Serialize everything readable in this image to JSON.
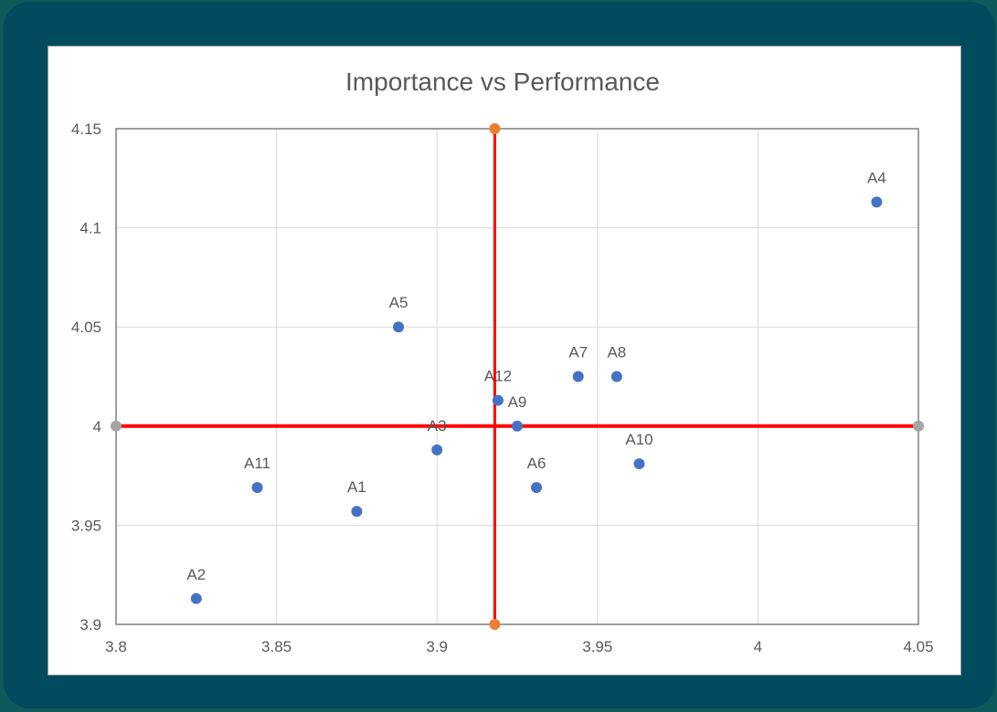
{
  "chart_data": {
    "type": "scatter",
    "title": "Importance vs Performance",
    "xlabel": "",
    "ylabel": "",
    "xlim": [
      3.8,
      4.05
    ],
    "ylim": [
      3.9,
      4.15
    ],
    "x_ticks": [
      "3.8",
      "3.85",
      "3.9",
      "3.95",
      "4",
      "4.05"
    ],
    "y_ticks": [
      "3.9",
      "3.95",
      "4",
      "4.05",
      "4.1",
      "4.15"
    ],
    "grid": true,
    "legend": "none",
    "points": [
      {
        "label": "A1",
        "x": 3.875,
        "y": 3.957
      },
      {
        "label": "A2",
        "x": 3.825,
        "y": 3.913
      },
      {
        "label": "A3",
        "x": 3.9,
        "y": 3.988
      },
      {
        "label": "A4",
        "x": 4.037,
        "y": 4.113
      },
      {
        "label": "A5",
        "x": 3.888,
        "y": 4.05
      },
      {
        "label": "A6",
        "x": 3.931,
        "y": 3.969
      },
      {
        "label": "A7",
        "x": 3.944,
        "y": 4.025
      },
      {
        "label": "A8",
        "x": 3.956,
        "y": 4.025
      },
      {
        "label": "A9",
        "x": 3.925,
        "y": 4.0
      },
      {
        "label": "A10",
        "x": 3.963,
        "y": 3.981
      },
      {
        "label": "A11",
        "x": 3.844,
        "y": 3.969
      },
      {
        "label": "A12",
        "x": 3.919,
        "y": 4.013
      }
    ],
    "reference_lines": {
      "vertical": {
        "x": 3.918,
        "y_from": 3.9,
        "y_to": 4.15
      },
      "horizontal": {
        "y": 4.0,
        "x_from": 3.8,
        "x_to": 4.05
      }
    },
    "colors": {
      "points": "#4472c4",
      "reference_line": "#ff0000",
      "vertical_endpoints": "#ed7d31",
      "horizontal_endpoints": "#a5a5a5",
      "grid": "#d9d9d9",
      "axis_text": "#595959"
    }
  }
}
